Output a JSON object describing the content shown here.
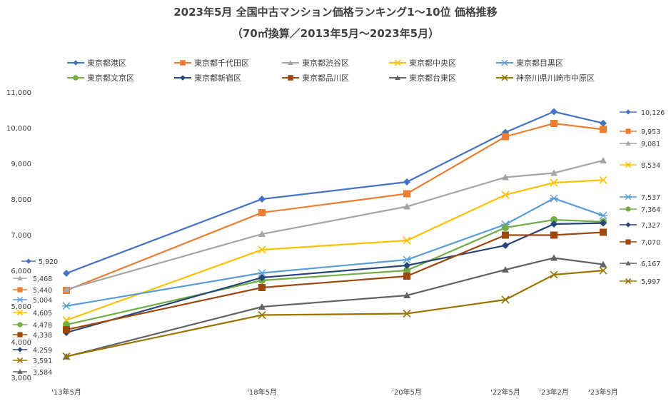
{
  "chart_data": {
    "type": "line",
    "title": "2023年5月 全国中古マンション価格ランキング1～10位 価格推移",
    "subtitle": "（70㎡換算／2013年5月～2023年5月）",
    "categories": [
      "'13年5月",
      "'18年5月",
      "'20年5月",
      "'22年5月",
      "'23年2月",
      "'23年5月"
    ],
    "y_ticks": [
      "3,000",
      "4,000",
      "5,000",
      "6,000",
      "7,000",
      "8,000",
      "9,000",
      "10,000",
      "11,000"
    ],
    "ylim": [
      3000,
      11000
    ],
    "grid": false,
    "legend_position": "top",
    "series": [
      {
        "name": "東京都港区",
        "color": "#4472C4",
        "marker": "diamond",
        "values": [
          5920,
          8000,
          8480,
          9870,
          10450,
          10126
        ],
        "first_label": "5,920",
        "last_label": "10,126"
      },
      {
        "name": "東京都千代田区",
        "color": "#ED7D31",
        "marker": "square",
        "values": [
          5440,
          7620,
          8150,
          9750,
          10120,
          9953
        ],
        "first_label": "5,440",
        "last_label": "9,953"
      },
      {
        "name": "東京都渋谷区",
        "color": "#A5A5A5",
        "marker": "triangle",
        "values": [
          5468,
          7020,
          7790,
          8610,
          8730,
          9081
        ],
        "first_label": "5,468",
        "last_label": "9,081"
      },
      {
        "name": "東京都中央区",
        "color": "#FFC000",
        "marker": "x",
        "values": [
          4605,
          6580,
          6840,
          8120,
          8460,
          8534
        ],
        "first_label": "4,605",
        "last_label": "8,534"
      },
      {
        "name": "東京都目黒区",
        "color": "#5B9BD5",
        "marker": "star",
        "values": [
          5004,
          5930,
          6300,
          7290,
          8020,
          7537
        ],
        "first_label": "5,004",
        "last_label": "7,537"
      },
      {
        "name": "東京都文京区",
        "color": "#70AD47",
        "marker": "circle",
        "values": [
          4478,
          5720,
          6000,
          7200,
          7420,
          7364
        ],
        "first_label": "4,478",
        "last_label": "7,364"
      },
      {
        "name": "東京都新宿区",
        "color": "#264478",
        "marker": "diamond",
        "values": [
          4259,
          5800,
          6140,
          6700,
          7300,
          7327
        ],
        "first_label": "4,259",
        "last_label": "7,327"
      },
      {
        "name": "東京都品川区",
        "color": "#9E480E",
        "marker": "square",
        "values": [
          4338,
          5520,
          5840,
          6990,
          6990,
          7070
        ],
        "first_label": "4,338",
        "last_label": "7,070"
      },
      {
        "name": "東京都台東区",
        "color": "#636363",
        "marker": "triangle",
        "values": [
          3584,
          4980,
          5300,
          6020,
          6350,
          6167
        ],
        "first_label": "3,584",
        "last_label": "6,167"
      },
      {
        "name": "神奈川県川崎市中原区",
        "color": "#997300",
        "marker": "x",
        "values": [
          3591,
          4750,
          4790,
          5180,
          5880,
          5997
        ],
        "first_label": "3,591",
        "last_label": "5,997"
      }
    ]
  }
}
